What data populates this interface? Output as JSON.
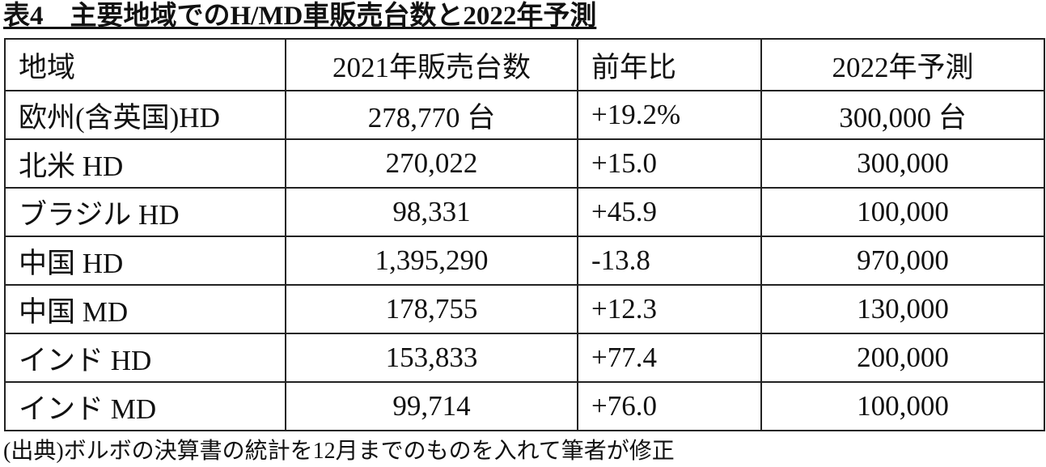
{
  "header": {
    "title": "表4　主要地域でのH/MD車販売台数と2022年予測"
  },
  "table": {
    "columns": [
      "地域",
      "2021年販売台数",
      "前年比",
      "2022年予測"
    ],
    "rows": [
      [
        "欧州(含英国)HD",
        "278,770 台",
        "+19.2%",
        "300,000 台"
      ],
      [
        "北米 HD",
        "270,022",
        "+15.0",
        "300,000"
      ],
      [
        "ブラジル HD",
        "98,331",
        "+45.9",
        "100,000"
      ],
      [
        "中国 HD",
        "1,395,290",
        "-13.8",
        "970,000"
      ],
      [
        "中国 MD",
        "178,755",
        "+12.3",
        "130,000"
      ],
      [
        "インド HD",
        "153,833",
        "+77.4",
        "200,000"
      ],
      [
        "インド MD",
        "99,714",
        "+76.0",
        "100,000"
      ]
    ]
  },
  "footnote": "(出典)ボルボの決算書の統計を12月までのものを入れて筆者が修正"
}
